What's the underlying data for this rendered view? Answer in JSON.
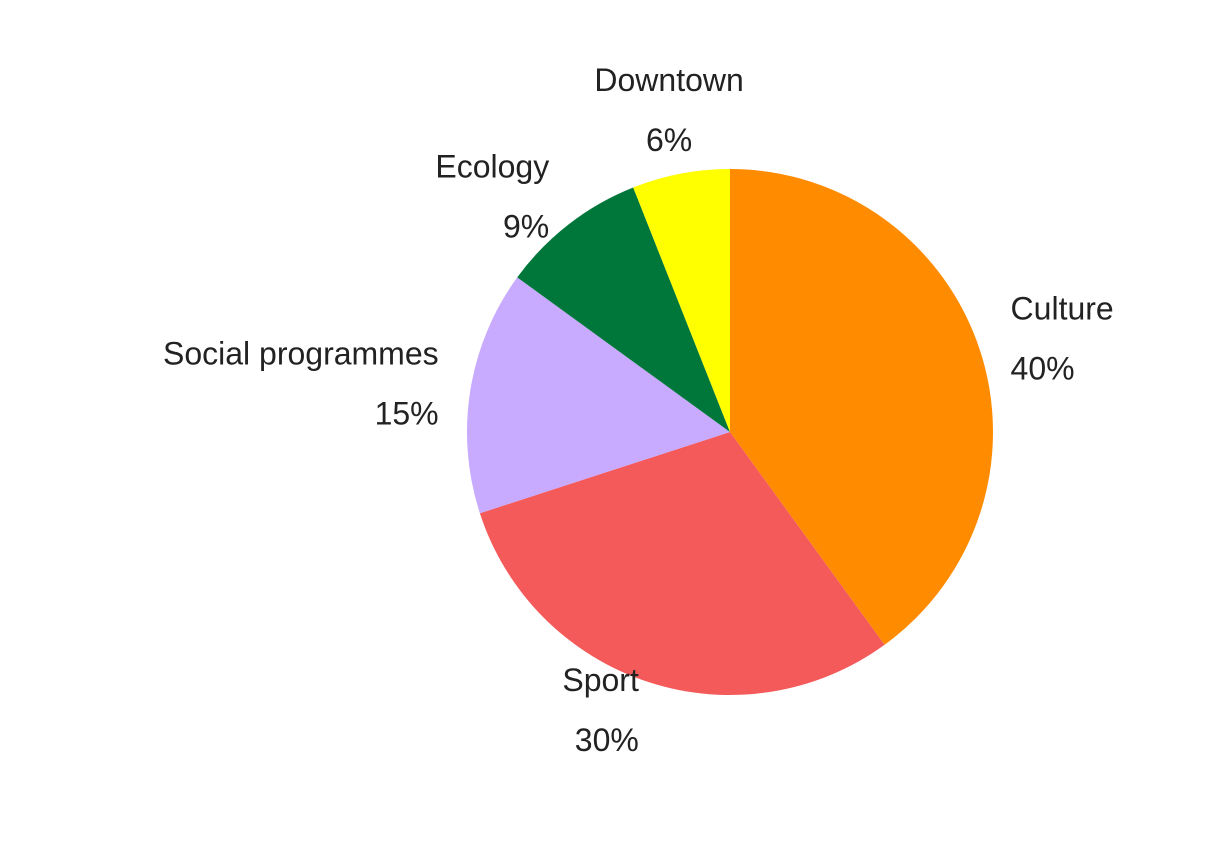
{
  "chart_data": {
    "type": "pie",
    "categories": [
      "Culture",
      "Sport",
      "Social programmes",
      "Ecology",
      "Downtown"
    ],
    "values": [
      40,
      30,
      15,
      9,
      6
    ],
    "value_labels": [
      "40%",
      "30%",
      "15%",
      "9%",
      "6%"
    ],
    "colors": [
      "#ff8c00",
      "#f55a5a",
      "#c8aaff",
      "#00773a",
      "#ffff00"
    ]
  }
}
